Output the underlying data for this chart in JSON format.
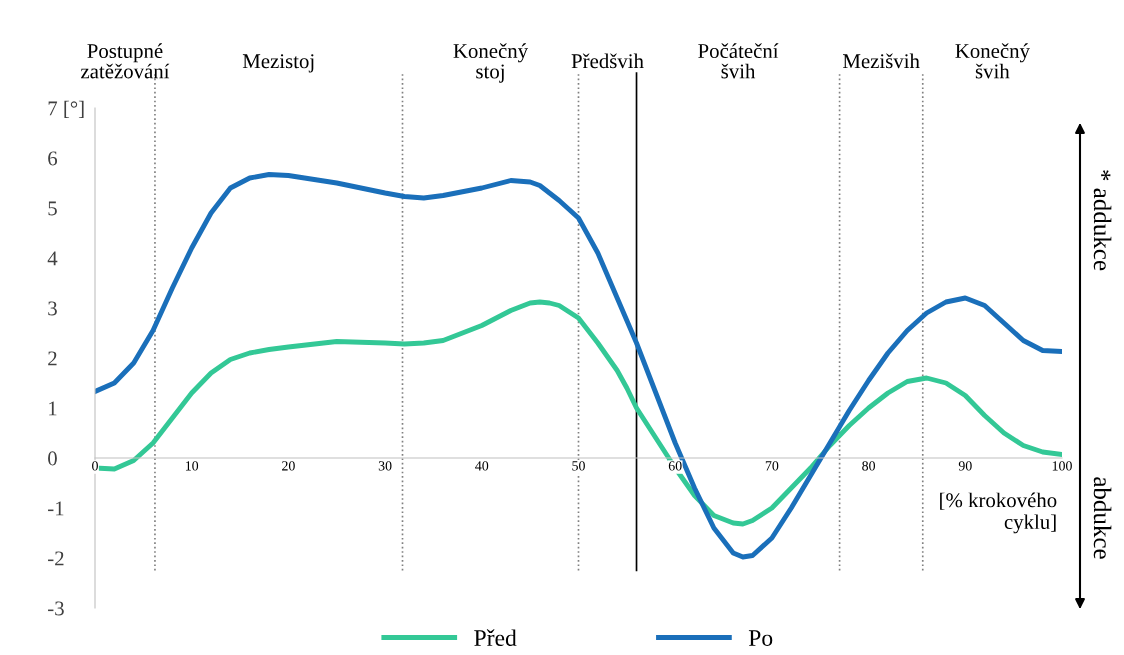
{
  "chart_data": {
    "type": "line",
    "x": [
      0,
      2,
      4,
      6,
      8,
      10,
      12,
      14,
      16,
      18,
      20,
      25,
      30,
      32,
      34,
      36,
      40,
      43,
      45,
      46,
      47,
      48,
      50,
      52,
      54,
      55,
      56,
      58,
      60,
      62,
      64,
      66,
      67,
      68,
      70,
      72,
      74,
      76,
      78,
      80,
      82,
      84,
      86,
      88,
      90,
      92,
      94,
      96,
      98,
      100
    ],
    "series": [
      {
        "name": "Před",
        "color": "#33c896",
        "values": [
          -0.2,
          -0.22,
          -0.05,
          0.3,
          0.8,
          1.3,
          1.7,
          1.97,
          2.1,
          2.17,
          2.22,
          2.33,
          2.3,
          2.28,
          2.3,
          2.35,
          2.65,
          2.95,
          3.1,
          3.12,
          3.1,
          3.05,
          2.8,
          2.3,
          1.75,
          1.4,
          1.0,
          0.4,
          -0.2,
          -0.75,
          -1.15,
          -1.3,
          -1.32,
          -1.25,
          -1.0,
          -0.6,
          -0.2,
          0.25,
          0.65,
          1.0,
          1.3,
          1.53,
          1.6,
          1.5,
          1.25,
          0.85,
          0.5,
          0.25,
          0.12,
          0.07
        ]
      },
      {
        "name": "Po",
        "color": "#1a6fba",
        "values": [
          1.33,
          1.5,
          1.9,
          2.55,
          3.4,
          4.2,
          4.9,
          5.4,
          5.6,
          5.67,
          5.65,
          5.5,
          5.3,
          5.23,
          5.2,
          5.25,
          5.4,
          5.55,
          5.52,
          5.45,
          5.3,
          5.15,
          4.8,
          4.1,
          3.2,
          2.75,
          2.3,
          1.3,
          0.3,
          -0.6,
          -1.4,
          -1.9,
          -1.98,
          -1.95,
          -1.6,
          -1.0,
          -0.35,
          0.3,
          0.95,
          1.55,
          2.1,
          2.55,
          2.9,
          3.12,
          3.2,
          3.05,
          2.7,
          2.35,
          2.15,
          2.13
        ]
      }
    ],
    "xlim": [
      0,
      100
    ],
    "xticks": [
      0,
      10,
      20,
      30,
      40,
      50,
      60,
      70,
      80,
      90,
      100
    ],
    "ylim": [
      -3,
      7
    ],
    "yticks": [
      -3,
      -2,
      -1,
      0,
      1,
      2,
      3,
      4,
      5,
      6,
      {
        "value": 7,
        "label": "7 [°]"
      }
    ],
    "xlabel": "[% krokového\ncyklu]",
    "ref_lines": [
      {
        "axis": "x",
        "value": 6.2,
        "line_style": "dotted",
        "color": "#808080"
      },
      {
        "axis": "x",
        "value": 31.8,
        "line_style": "dotted",
        "color": "#808080"
      },
      {
        "axis": "x",
        "value": 50,
        "line_style": "dotted",
        "color": "#808080"
      },
      {
        "axis": "x",
        "value": 56,
        "line_style": "solid",
        "color": "#000000"
      },
      {
        "axis": "x",
        "value": 77,
        "line_style": "dotted",
        "color": "#808080"
      },
      {
        "axis": "x",
        "value": 85.6,
        "line_style": "dotted",
        "color": "#808080"
      }
    ],
    "annotations": [
      "Postupné\nzatěžování",
      "Mezistoj",
      "Konečný\nstoj",
      "Předšvih",
      "Počáteční\nšvih",
      "Mezišvih",
      "Konečný\nšvih",
      "* addukce",
      "abdukce"
    ],
    "grid": false,
    "legend": "bottom",
    "marker": "none",
    "line_style": "solid"
  }
}
